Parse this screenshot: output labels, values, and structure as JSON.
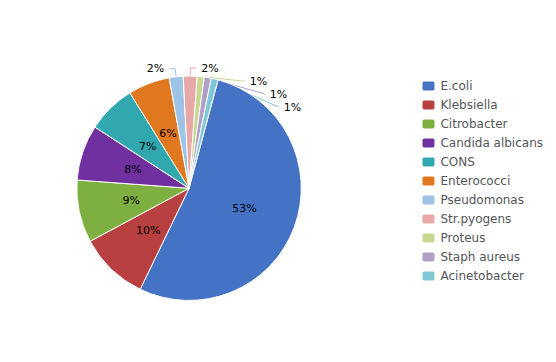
{
  "chart_data": {
    "type": "pie",
    "categories": [
      "E.coli",
      "Klebsiella",
      "Citrobacter",
      "Candida albicans",
      "CONS",
      "Enterococci",
      "Pseudomonas",
      "Str.pyogens",
      "Proteus",
      "Staph aureus",
      "Acinetobacter"
    ],
    "values": [
      53,
      10,
      9,
      8,
      7,
      6,
      2,
      2,
      1,
      1,
      1
    ],
    "value_labels": [
      "53%",
      "10%",
      "9%",
      "8%",
      "7%",
      "6%",
      "2%",
      "2%",
      "1%",
      "1%",
      "1%"
    ],
    "data_labels": true,
    "colors": [
      "#4472C4",
      "#B94040",
      "#7DB040",
      "#7030A0",
      "#31A8B0",
      "#E07820",
      "#9DC3E6",
      "#E8A8A8",
      "#C8D890",
      "#B0A0C8",
      "#80C8D8"
    ],
    "legend": "right"
  }
}
